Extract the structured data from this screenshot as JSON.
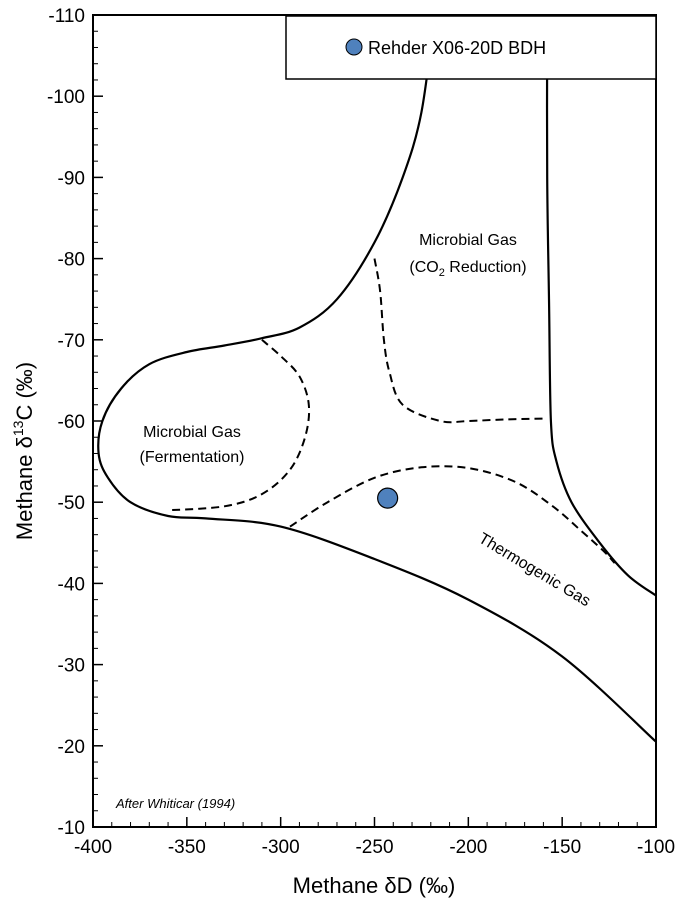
{
  "chart_data": {
    "type": "scatter",
    "title": "",
    "xlabel": "Methane δD (‰)",
    "ylabel": "Methane δ13C (‰)",
    "ylabel_base": "Methane δ",
    "ylabel_sup": "13",
    "ylabel_tail": "C (‰)",
    "xlim": [
      -400,
      -100
    ],
    "ylim": [
      -10,
      -110
    ],
    "x_ticks": [
      -400,
      -350,
      -300,
      -250,
      -200,
      -150,
      -100
    ],
    "y_ticks": [
      -10,
      -20,
      -30,
      -40,
      -50,
      -60,
      -70,
      -80,
      -90,
      -100,
      -110
    ],
    "grid": false,
    "legend_position": "top-right",
    "series": [
      {
        "name": "Rehder X06-20D BDH",
        "color": "#4f81bd",
        "points": [
          {
            "x": -243,
            "y": -50.5
          }
        ]
      }
    ],
    "boundaries": {
      "solid_outer": [
        [
          -100,
          -20.5
        ],
        [
          -150,
          -31
        ],
        [
          -200,
          -38
        ],
        [
          -250,
          -43
        ],
        [
          -300,
          -47
        ],
        [
          -340,
          -48
        ],
        [
          -360,
          -48.3
        ],
        [
          -380,
          -50
        ],
        [
          -392,
          -53
        ],
        [
          -397,
          -56
        ],
        [
          -395,
          -60
        ],
        [
          -385,
          -64
        ],
        [
          -370,
          -67
        ],
        [
          -350,
          -68.5
        ],
        [
          -330,
          -69.3
        ],
        [
          -310,
          -70.2
        ],
        [
          -290,
          -71.5
        ],
        [
          -270,
          -75
        ],
        [
          -250,
          -82
        ],
        [
          -235,
          -90
        ],
        [
          -225,
          -98
        ],
        [
          -218,
          -110
        ]
      ],
      "solid_right": [
        [
          -158,
          -110
        ],
        [
          -158,
          -90
        ],
        [
          -157,
          -75
        ],
        [
          -156,
          -60
        ],
        [
          -153,
          -55
        ],
        [
          -145,
          -50
        ],
        [
          -130,
          -45
        ],
        [
          -115,
          -41
        ],
        [
          -100,
          -38.5
        ]
      ],
      "dashed_fermentation": [
        [
          -310,
          -70
        ],
        [
          -300,
          -68
        ],
        [
          -290,
          -65.5
        ],
        [
          -285,
          -62
        ],
        [
          -287,
          -58
        ],
        [
          -295,
          -54
        ],
        [
          -310,
          -51
        ],
        [
          -330,
          -49.5
        ],
        [
          -360,
          -49
        ]
      ],
      "dashed_co2": [
        [
          -250,
          -80
        ],
        [
          -247,
          -76
        ],
        [
          -245,
          -70
        ],
        [
          -242,
          -66
        ],
        [
          -235,
          -62
        ],
        [
          -215,
          -60
        ],
        [
          -200,
          -60
        ],
        [
          -180,
          -60.2
        ],
        [
          -160,
          -60.3
        ]
      ],
      "dashed_thermogenic": [
        [
          -295,
          -47
        ],
        [
          -275,
          -50
        ],
        [
          -250,
          -53
        ],
        [
          -225,
          -54.3
        ],
        [
          -200,
          -54.2
        ],
        [
          -175,
          -52.5
        ],
        [
          -155,
          -49.5
        ],
        [
          -140,
          -46.5
        ],
        [
          -128,
          -44
        ],
        [
          -122,
          -42.5
        ]
      ]
    },
    "annotations": {
      "fermentation_line1": "Microbial Gas",
      "fermentation_line2": "(Fermentation)",
      "co2_line1": "Microbial Gas",
      "co2_line2_pre": "(CO",
      "co2_line2_sub": "2",
      "co2_line2_post": " Reduction)",
      "thermogenic": "Thermogenic Gas",
      "credit": "After Whiticar (1994)"
    }
  }
}
